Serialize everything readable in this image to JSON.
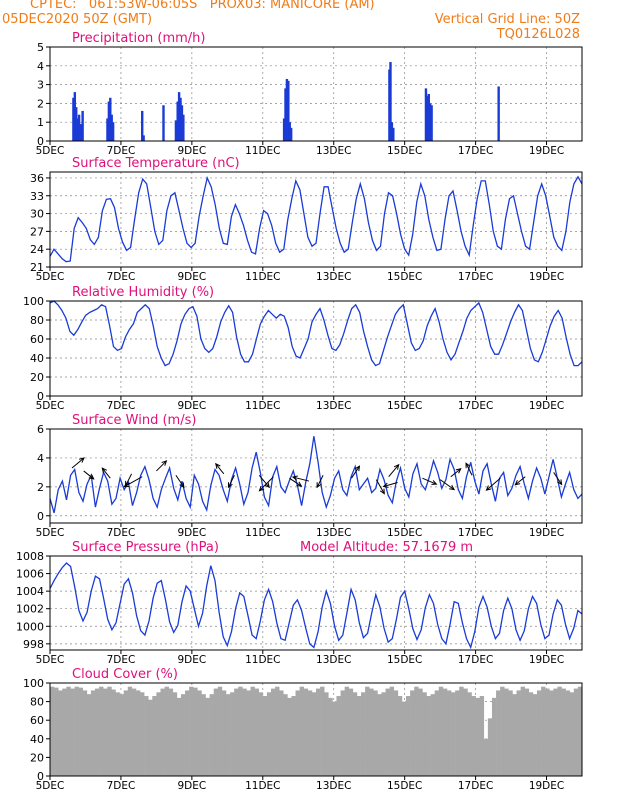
{
  "header": {
    "line1": "CPTEC:   061:53W-06:05S   PROX03: MANICORE (AM)",
    "line2_left": "05DEC2020 50Z (GMT)",
    "line2_right": "Vertical Grid Line: 50Z",
    "line3_right": "TQ0126L028"
  },
  "colors": {
    "header": "#f07c18",
    "title": "#e0107a",
    "line": "#1a3bd6",
    "bars": "#1a3bd6",
    "cloud": "#a8a8a8"
  },
  "chart_data": [
    {
      "type": "bar",
      "title": "Precipitation (mm/h)",
      "ylim": [
        0,
        5
      ],
      "yticks": [
        0,
        1,
        2,
        3,
        4,
        5
      ],
      "x_start": "05DEC",
      "x_end_days": 15,
      "xtick_labels": [
        "5DEC",
        "7DEC",
        "9DEC",
        "11DEC",
        "13DEC",
        "15DEC",
        "17DEC",
        "19DEC"
      ],
      "points": [
        [
          0.66,
          2.3
        ],
        [
          0.7,
          2.6
        ],
        [
          0.74,
          1.8
        ],
        [
          0.78,
          1.2
        ],
        [
          0.82,
          1.4
        ],
        [
          0.86,
          0.9
        ],
        [
          0.92,
          1.6
        ],
        [
          1.62,
          1.2
        ],
        [
          1.66,
          2.1
        ],
        [
          1.7,
          2.3
        ],
        [
          1.74,
          1.4
        ],
        [
          1.78,
          1.0
        ],
        [
          2.6,
          1.6
        ],
        [
          2.64,
          0.3
        ],
        [
          3.2,
          1.9
        ],
        [
          3.55,
          1.1
        ],
        [
          3.6,
          2.1
        ],
        [
          3.64,
          2.6
        ],
        [
          3.68,
          2.3
        ],
        [
          3.72,
          1.9
        ],
        [
          3.76,
          1.4
        ],
        [
          6.6,
          1.2
        ],
        [
          6.64,
          2.8
        ],
        [
          6.68,
          3.3
        ],
        [
          6.72,
          3.2
        ],
        [
          6.76,
          1.0
        ],
        [
          6.8,
          0.7
        ],
        [
          9.57,
          3.8
        ],
        [
          9.6,
          4.2
        ],
        [
          9.64,
          1.0
        ],
        [
          9.68,
          0.7
        ],
        [
          10.6,
          2.8
        ],
        [
          10.64,
          2.4
        ],
        [
          10.68,
          2.5
        ],
        [
          10.72,
          2.0
        ],
        [
          10.76,
          1.9
        ],
        [
          12.65,
          2.9
        ]
      ]
    },
    {
      "type": "line",
      "title": "Surface Temperature (nC)",
      "ylim": [
        21,
        37
      ],
      "yticks": [
        21,
        24,
        27,
        30,
        33,
        36
      ],
      "xtick_labels": [
        "5DEC",
        "7DEC",
        "9DEC",
        "11DEC",
        "13DEC",
        "15DEC",
        "17DEC",
        "19DEC"
      ],
      "x_start": "05DEC",
      "x_end_days": 15,
      "y": [
        22.8,
        24.0,
        23.2,
        22.4,
        21.9,
        22.0,
        27.5,
        29.3,
        28.5,
        27.5,
        25.6,
        24.8,
        26.0,
        30.5,
        32.4,
        32.5,
        31.0,
        27.5,
        25.2,
        23.8,
        24.3,
        29.0,
        33.5,
        35.8,
        35.0,
        31.0,
        27.0,
        24.8,
        25.5,
        30.5,
        33.0,
        33.5,
        30.5,
        27.5,
        25.0,
        24.3,
        25.0,
        29.5,
        33.0,
        36.0,
        34.5,
        31.5,
        27.5,
        25.0,
        24.8,
        29.5,
        31.5,
        30.0,
        28.0,
        25.5,
        23.5,
        23.2,
        27.5,
        30.5,
        30.0,
        28.0,
        25.0,
        23.5,
        24.0,
        29.0,
        32.5,
        35.5,
        34.0,
        30.0,
        26.0,
        24.5,
        25.0,
        30.0,
        34.5,
        34.5,
        31.0,
        27.5,
        25.0,
        23.5,
        24.0,
        28.5,
        32.5,
        35.0,
        32.5,
        28.5,
        25.5,
        23.8,
        24.5,
        30.0,
        33.5,
        33.0,
        30.0,
        26.5,
        24.0,
        23.0,
        26.5,
        32.0,
        35.0,
        33.0,
        29.0,
        26.0,
        23.8,
        24.0,
        29.0,
        33.0,
        33.8,
        30.5,
        27.0,
        24.5,
        23.0,
        28.0,
        32.5,
        35.5,
        35.5,
        31.5,
        27.0,
        24.5,
        24.0,
        29.0,
        32.5,
        33.0,
        30.0,
        27.0,
        24.5,
        24.0,
        28.5,
        33.0,
        35.0,
        33.0,
        29.5,
        26.0,
        24.5,
        23.8,
        27.0,
        32.0,
        35.0,
        36.2,
        35.0
      ]
    },
    {
      "type": "line",
      "title": "Relative Humidity (%)",
      "ylim": [
        0,
        100
      ],
      "yticks": [
        0,
        20,
        40,
        60,
        80,
        100
      ],
      "xtick_labels": [
        "5DEC",
        "7DEC",
        "9DEC",
        "11DEC",
        "13DEC",
        "15DEC",
        "17DEC",
        "19DEC"
      ],
      "x_start": "05DEC",
      "x_end_days": 15,
      "y": [
        98,
        100,
        96,
        90,
        82,
        68,
        64,
        70,
        78,
        85,
        88,
        90,
        92,
        96,
        94,
        74,
        52,
        48,
        50,
        62,
        70,
        76,
        88,
        92,
        96,
        92,
        74,
        52,
        40,
        32,
        34,
        44,
        58,
        76,
        86,
        92,
        94,
        84,
        60,
        50,
        46,
        50,
        62,
        78,
        88,
        95,
        88,
        62,
        44,
        36,
        36,
        44,
        60,
        76,
        84,
        90,
        86,
        82,
        86,
        84,
        72,
        52,
        42,
        40,
        50,
        60,
        78,
        86,
        92,
        80,
        64,
        50,
        48,
        54,
        66,
        80,
        92,
        96,
        88,
        68,
        52,
        38,
        32,
        34,
        48,
        62,
        74,
        86,
        92,
        96,
        76,
        56,
        48,
        50,
        58,
        74,
        84,
        92,
        78,
        60,
        46,
        38,
        44,
        56,
        68,
        82,
        90,
        94,
        98,
        88,
        70,
        52,
        44,
        44,
        54,
        66,
        78,
        88,
        96,
        90,
        70,
        50,
        38,
        36,
        46,
        60,
        74,
        84,
        90,
        82,
        62,
        44,
        32,
        32,
        36
      ]
    },
    {
      "type": "line",
      "title": "Surface Wind (m/s)",
      "ylim": [
        -0.5,
        6
      ],
      "yticks": [
        0,
        2,
        4,
        6
      ],
      "xtick_labels": [
        "5DEC",
        "7DEC",
        "9DEC",
        "11DEC",
        "13DEC",
        "15DEC",
        "17DEC",
        "19DEC"
      ],
      "x_start": "05DEC",
      "x_end_days": 15,
      "y": [
        1.2,
        0.2,
        1.8,
        2.4,
        1.1,
        2.8,
        3.2,
        1.6,
        1.0,
        2.2,
        2.8,
        0.6,
        1.9,
        3.0,
        2.4,
        0.8,
        1.2,
        2.6,
        1.8,
        2.3,
        0.7,
        1.6,
        2.8,
        3.4,
        2.5,
        1.2,
        0.6,
        1.8,
        2.6,
        3.3,
        1.9,
        1.1,
        2.4,
        1.2,
        0.6,
        2.8,
        2.2,
        1.0,
        0.4,
        2.1,
        3.2,
        2.8,
        1.8,
        1.0,
        2.5,
        3.3,
        2.2,
        0.8,
        1.6,
        3.3,
        4.4,
        3.0,
        1.3,
        0.7,
        2.7,
        3.4,
        2.0,
        1.6,
        2.4,
        3.1,
        2.1,
        0.7,
        2.3,
        3.6,
        5.5,
        3.7,
        1.6,
        0.6,
        1.4,
        2.6,
        3.1,
        1.8,
        1.4,
        2.7,
        3.4,
        1.8,
        2.2,
        2.6,
        1.6,
        1.9,
        3.2,
        2.5,
        1.4,
        0.9,
        2.4,
        3.3,
        1.9,
        1.3,
        2.9,
        3.6,
        2.2,
        1.8,
        2.7,
        3.8,
        3.0,
        1.9,
        2.5,
        3.9,
        3.2,
        1.8,
        1.2,
        2.7,
        3.7,
        2.4,
        1.5,
        3.1,
        3.6,
        2.2,
        1.0,
        2.6,
        3.0,
        1.4,
        1.9,
        2.8,
        3.4,
        2.2,
        1.2,
        2.4,
        3.3,
        2.6,
        1.5,
        2.7,
        3.9,
        2.6,
        1.3,
        2.2,
        3.0,
        1.8,
        1.2,
        1.5
      ]
    },
    {
      "type": "line",
      "title": "Surface Pressure (hPa)",
      "annotation": "Model Altitude: 57.1679 m",
      "ylim": [
        997.3,
        1008
      ],
      "yticks": [
        998,
        1000,
        1002,
        1004,
        1006,
        1008
      ],
      "xtick_labels": [
        "5DEC",
        "7DEC",
        "9DEC",
        "11DEC",
        "13DEC",
        "15DEC",
        "17DEC",
        "19DEC"
      ],
      "x_start": "05DEC",
      "x_end_days": 15,
      "y": [
        1004.3,
        1005.2,
        1006.0,
        1006.7,
        1007.2,
        1006.8,
        1004.5,
        1001.8,
        1000.6,
        1001.6,
        1004.0,
        1005.7,
        1005.4,
        1003.2,
        1000.8,
        999.6,
        1000.4,
        1002.6,
        1004.8,
        1005.4,
        1003.8,
        1001.2,
        999.5,
        999.0,
        1000.6,
        1003.2,
        1004.9,
        1005.2,
        1003.0,
        1000.5,
        999.3,
        1000.1,
        1002.8,
        1004.6,
        1004.0,
        1002.0,
        1000.0,
        1001.5,
        1004.6,
        1006.9,
        1005.2,
        1001.6,
        998.8,
        997.8,
        999.4,
        1002.0,
        1003.8,
        1003.4,
        1001.2,
        999.0,
        998.6,
        1000.6,
        1003.0,
        1004.2,
        1002.8,
        1000.4,
        998.6,
        998.4,
        1000.4,
        1002.4,
        1003.0,
        1001.8,
        999.8,
        998.0,
        997.6,
        999.4,
        1002.2,
        1004.0,
        1002.6,
        1000.0,
        998.4,
        999.0,
        1001.5,
        1004.2,
        1003.0,
        1000.4,
        998.7,
        999.2,
        1001.5,
        1003.6,
        1002.2,
        999.8,
        998.2,
        998.6,
        1000.8,
        1003.3,
        1004.0,
        1002.0,
        999.7,
        998.5,
        999.6,
        1002.1,
        1003.6,
        1002.6,
        1000.2,
        998.6,
        998.0,
        1000.2,
        1002.8,
        1002.6,
        1000.4,
        998.6,
        997.6,
        999.4,
        1002.2,
        1003.4,
        1002.2,
        1000.0,
        998.6,
        999.2,
        1001.8,
        1003.2,
        1002.0,
        999.6,
        998.4,
        999.5,
        1002.0,
        1003.4,
        1002.6,
        1000.2,
        998.6,
        999.0,
        1001.4,
        1003.0,
        1002.4,
        1000.2,
        998.6,
        999.8,
        1001.8,
        1001.4
      ]
    },
    {
      "type": "bar",
      "title": "Cloud Cover (%)",
      "ylim": [
        0,
        100
      ],
      "yticks": [
        0,
        20,
        40,
        60,
        80,
        100
      ],
      "xtick_labels": [
        "5DEC",
        "7DEC",
        "9DEC",
        "11DEC",
        "13DEC",
        "15DEC",
        "17DEC",
        "19DEC"
      ],
      "x_start": "05DEC",
      "x_end_days": 15,
      "values": [
        96,
        95,
        92,
        94,
        96,
        94,
        96,
        95,
        92,
        88,
        92,
        94,
        96,
        94,
        96,
        93,
        90,
        88,
        92,
        96,
        94,
        92,
        90,
        86,
        82,
        86,
        90,
        94,
        96,
        94,
        90,
        84,
        88,
        92,
        96,
        95,
        92,
        88,
        84,
        88,
        94,
        96,
        92,
        88,
        90,
        94,
        96,
        94,
        92,
        96,
        94,
        90,
        86,
        90,
        94,
        96,
        92,
        88,
        84,
        86,
        92,
        96,
        94,
        92,
        90,
        94,
        96,
        90,
        84,
        80,
        86,
        92,
        96,
        94,
        90,
        86,
        90,
        96,
        94,
        92,
        88,
        90,
        94,
        96,
        92,
        86,
        80,
        86,
        92,
        96,
        94,
        90,
        86,
        88,
        92,
        96,
        94,
        92,
        90,
        92,
        96,
        94,
        90,
        86,
        84,
        86,
        40,
        62,
        84,
        92,
        96,
        94,
        92,
        88,
        92,
        96,
        94,
        90,
        88,
        92,
        96,
        94,
        92,
        94,
        96,
        94,
        92,
        90,
        94,
        96
      ]
    }
  ]
}
